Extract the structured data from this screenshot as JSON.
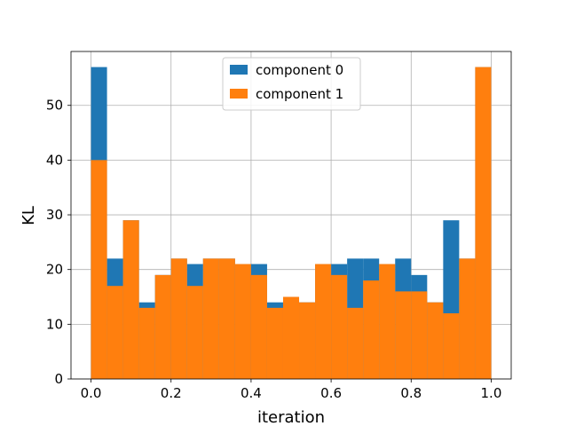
{
  "chart_data": {
    "type": "bar",
    "title": "",
    "xlabel": "iteration",
    "ylabel": "KL",
    "xlim": [
      -0.05,
      1.05
    ],
    "ylim": [
      0,
      59.85
    ],
    "grid": true,
    "legend_position": "top-center",
    "x_ticks": [
      0.0,
      0.2,
      0.4,
      0.6,
      0.8,
      1.0
    ],
    "x_tick_labels": [
      "0.0",
      "0.2",
      "0.4",
      "0.6",
      "0.8",
      "1.0"
    ],
    "y_ticks": [
      0,
      10,
      20,
      30,
      40,
      50
    ],
    "y_tick_labels": [
      "0",
      "10",
      "20",
      "30",
      "40",
      "50"
    ],
    "bin_edges": [
      0.0,
      0.04,
      0.08,
      0.12,
      0.16,
      0.2,
      0.24,
      0.28,
      0.32,
      0.36,
      0.4,
      0.44,
      0.48,
      0.52,
      0.56,
      0.6,
      0.64,
      0.68,
      0.72,
      0.76,
      0.8,
      0.84,
      0.88,
      0.92,
      0.96,
      1.0
    ],
    "series": [
      {
        "name": "component 0",
        "color": "#1f77b4",
        "values": [
          57,
          22,
          29,
          14,
          19,
          22,
          21,
          22,
          22,
          21,
          21,
          14,
          15,
          14,
          21,
          21,
          22,
          22,
          21,
          22,
          19,
          14,
          29,
          22,
          57
        ]
      },
      {
        "name": "component 1",
        "color": "#ff7f0e",
        "values": [
          40,
          17,
          29,
          13,
          19,
          22,
          17,
          22,
          22,
          21,
          19,
          13,
          15,
          14,
          21,
          19,
          13,
          18,
          21,
          16,
          16,
          14,
          12,
          22,
          57
        ]
      }
    ]
  }
}
